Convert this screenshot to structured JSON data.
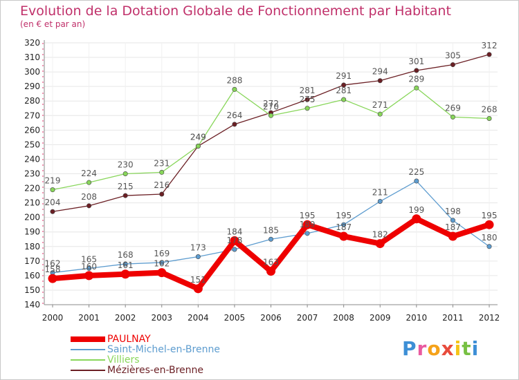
{
  "chart_data": {
    "type": "line",
    "title": "Evolution de la Dotation Globale de Fonctionnement par Habitant",
    "subtitle": "(en € et par an)",
    "xlabel": "",
    "ylabel": "",
    "categories": [
      "2000",
      "2001",
      "2002",
      "2003",
      "2004",
      "2005",
      "2006",
      "2007",
      "2008",
      "2009",
      "2010",
      "2011",
      "2012"
    ],
    "ylim": [
      140,
      320
    ],
    "yticks": [
      140,
      150,
      160,
      170,
      180,
      190,
      200,
      210,
      220,
      230,
      240,
      250,
      260,
      270,
      280,
      290,
      300,
      310,
      320
    ],
    "grid": true,
    "legend_position": "bottom-left",
    "series": [
      {
        "name": "PAULNAY",
        "color": "#ee0000",
        "values": [
          158,
          160,
          161,
          162,
          151,
          184,
          163,
          195,
          187,
          182,
          199,
          187,
          195
        ]
      },
      {
        "name": "Saint-Michel-en-Brenne",
        "color": "#5d9ccf",
        "values": [
          162,
          165,
          168,
          169,
          173,
          178,
          185,
          189,
          195,
          211,
          225,
          198,
          180
        ]
      },
      {
        "name": "Villiers",
        "color": "#88d65a",
        "values": [
          219,
          224,
          230,
          231,
          249,
          288,
          270,
          275,
          281,
          271,
          289,
          269,
          268
        ]
      },
      {
        "name": "Mézières-en-Brenne",
        "color": "#6b1f24",
        "values": [
          204,
          208,
          215,
          216,
          249,
          264,
          272,
          281,
          291,
          294,
          301,
          305,
          312
        ]
      }
    ]
  },
  "branding": {
    "logo_text": "Proxiti",
    "logo_colors": [
      "#3d8fd6",
      "#e95aa0",
      "#f5a21a",
      "#e84b3c",
      "#f5c418",
      "#77c043",
      "#3d8fd6"
    ]
  }
}
